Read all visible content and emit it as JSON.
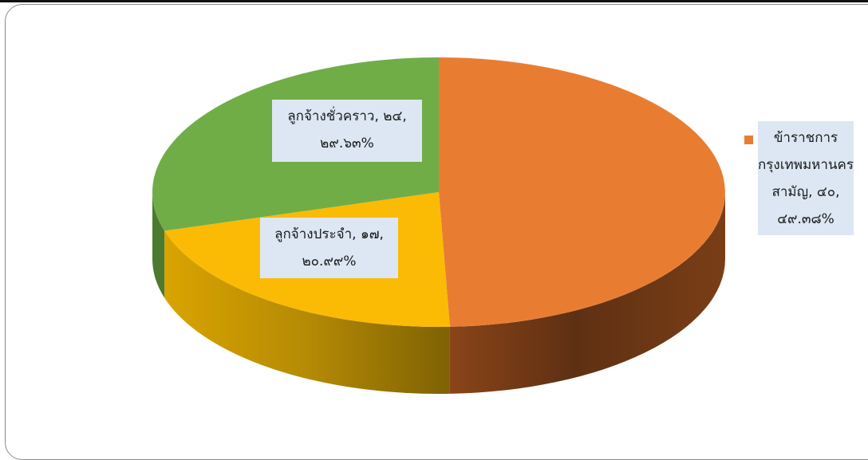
{
  "chart_data": {
    "type": "pie",
    "style": "3d",
    "slices": [
      {
        "label": "ข้าราชการกรุงเทพมหานครสามัญ",
        "value": 40,
        "percent": "49.38%",
        "color": "#e87d32",
        "label_lines": [
          "ข้าราชการ",
          "กรุงเทพมหานคร",
          "สามัญ, ๔๐,",
          "๔๙.๓๘%"
        ]
      },
      {
        "label": "ลูกจ้างประจำ",
        "value": 17,
        "percent": "20.99%",
        "color": "#fbbb04",
        "label_lines": [
          "ลูกจ้างประจำ, ๑๗,",
          "๒๐.๙๙%"
        ]
      },
      {
        "label": "ลูกจ้างชั่วคราว",
        "value": 24,
        "percent": "29.63%",
        "color": "#70ad47",
        "label_lines": [
          "ลูกจ้างชั่วคราว, ๒๔,",
          "๒๙.๖๓%"
        ]
      }
    ]
  }
}
